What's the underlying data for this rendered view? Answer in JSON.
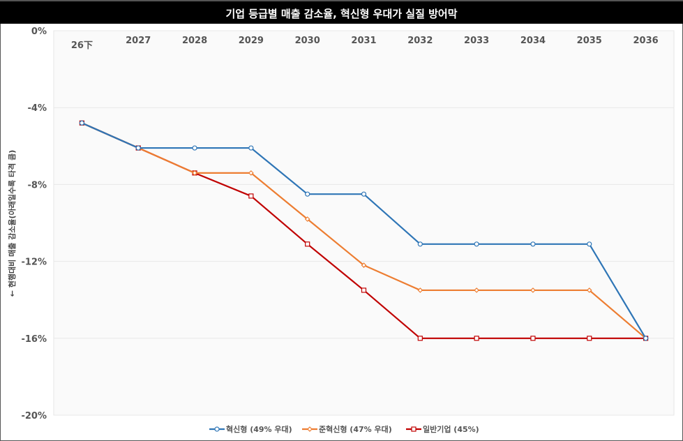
{
  "chart_data": {
    "type": "line",
    "title": "기업 등급별 매출 감소율, 혁신형 우대가 실질 방어막",
    "ylabel": "← 현행대비 매출 감소율(아래일수록 타격 큼)",
    "xlabel": "",
    "categories": [
      "26下",
      "2027",
      "2028",
      "2029",
      "2030",
      "2031",
      "2032",
      "2033",
      "2034",
      "2035",
      "2036"
    ],
    "x_axis_position": "top",
    "ylim": [
      -20,
      0
    ],
    "yticks": [
      0,
      -4,
      -8,
      -12,
      -16,
      -20
    ],
    "ytick_labels": [
      "0%",
      "-4%",
      "-8%",
      "-12%",
      "-16%",
      "-20%"
    ],
    "grid": true,
    "legend_position": "bottom",
    "series": [
      {
        "name": "혁신형 (49% 우대)",
        "color": "#2E75B6",
        "marker": "circle",
        "values": [
          -4.8,
          -6.1,
          -6.1,
          -6.1,
          -8.5,
          -8.5,
          -11.1,
          -11.1,
          -11.1,
          -11.1,
          -16.0
        ]
      },
      {
        "name": "준혁신형 (47% 우대)",
        "color": "#ED7D31",
        "marker": "diamond",
        "values": [
          -4.8,
          -6.1,
          -7.4,
          -7.4,
          -9.8,
          -12.2,
          -13.5,
          -13.5,
          -13.5,
          -13.5,
          -16.0
        ]
      },
      {
        "name": "일반기업 (45%)",
        "color": "#C00000",
        "marker": "square",
        "values": [
          -4.8,
          -6.1,
          -7.4,
          -8.6,
          -11.1,
          -13.5,
          -16.0,
          -16.0,
          -16.0,
          -16.0,
          -16.0
        ]
      }
    ]
  }
}
